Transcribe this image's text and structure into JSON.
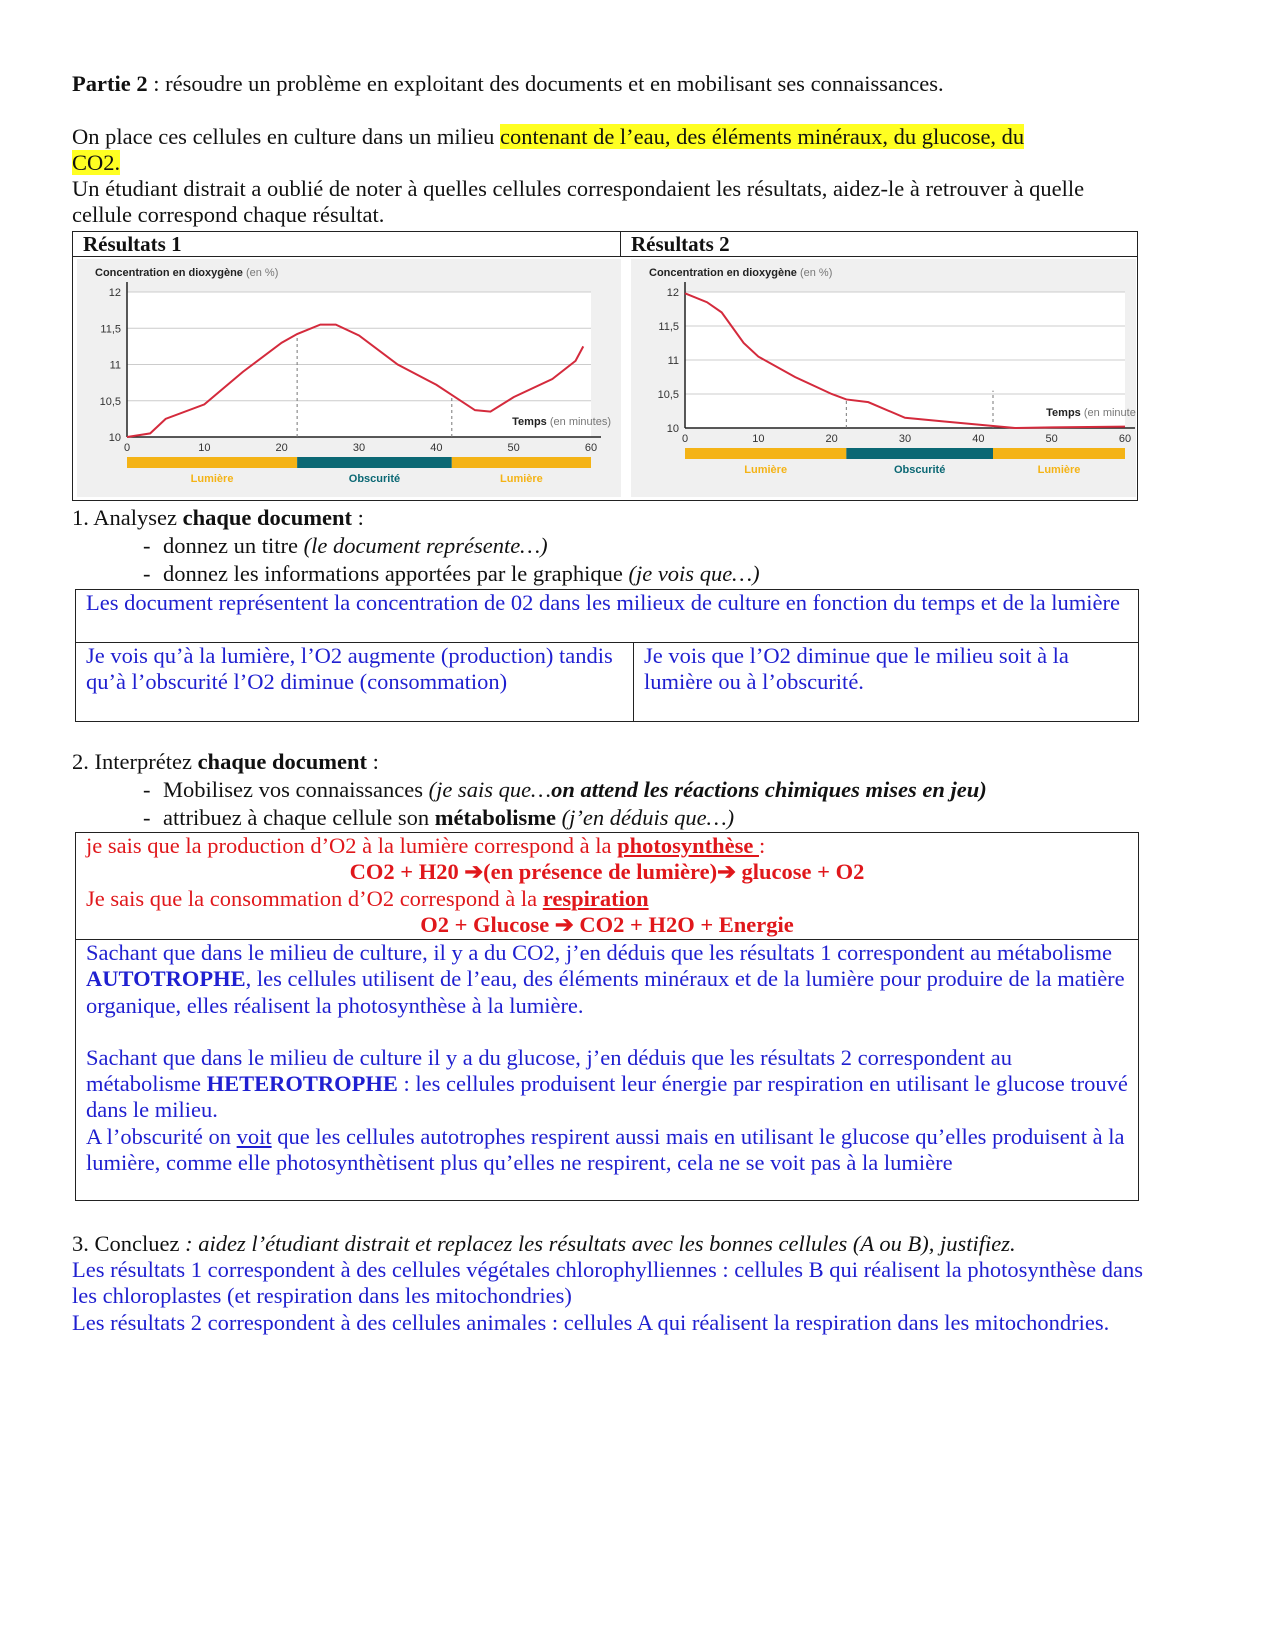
{
  "intro": {
    "part_label": "Partie 2",
    "part_text": " : résoudre un problème en exploitant des documents et en mobilisant ses connaissances.",
    "p1_start": "On place ces cellules en culture dans un milieu ",
    "p1_highlight": "contenant de l’eau, des éléments minéraux, du glucose, du CO2.",
    "p2": "Un étudiant distrait a oublié de noter à quelles cellules correspondaient les résultats, aidez-le à retrouver à quelle cellule correspond chaque résultat."
  },
  "colors": {
    "curve": "#d42a3c",
    "light": "#f4b316",
    "dark": "#0b6874",
    "answer_blue": "#1f1fd0",
    "answer_red": "#e0171b",
    "highlight": "#ffff22"
  },
  "chart_data": [
    {
      "type": "line",
      "panel_title": "Résultats 1",
      "ylabel": "Concentration en dioxygène",
      "ylabel_unit": "(en %)",
      "xlabel": "Temps",
      "xlabel_unit": "(en minutes)",
      "xlim": [
        0,
        60
      ],
      "ylim": [
        10,
        12
      ],
      "xticks": [
        "0",
        "10",
        "20",
        "30",
        "40",
        "50",
        "60"
      ],
      "yticks": [
        "10",
        "10,5",
        "11",
        "11,5",
        "12"
      ],
      "grid": true,
      "x": [
        0,
        3,
        5,
        10,
        15,
        20,
        22,
        25,
        27,
        30,
        35,
        40,
        42,
        45,
        47,
        50,
        55,
        58,
        59
      ],
      "y": [
        10,
        10.05,
        10.25,
        10.45,
        10.9,
        11.3,
        11.42,
        11.55,
        11.55,
        11.4,
        11.0,
        10.72,
        10.58,
        10.37,
        10.35,
        10.55,
        10.8,
        11.05,
        11.25
      ],
      "markers_x": [
        22,
        42
      ],
      "periods": [
        {
          "label": "Lumière",
          "from": 0,
          "to": 22,
          "kind": "light"
        },
        {
          "label": "Obscurité",
          "from": 22,
          "to": 42,
          "kind": "dark"
        },
        {
          "label": "Lumière",
          "from": 42,
          "to": 60,
          "kind": "light"
        }
      ]
    },
    {
      "type": "line",
      "panel_title": "Résultats 2",
      "ylabel": "Concentration en dioxygène",
      "ylabel_unit": "(en %)",
      "xlabel": "Temps",
      "xlabel_unit": "(en minutes)",
      "xlim": [
        0,
        60
      ],
      "ylim": [
        10,
        12
      ],
      "xticks": [
        "0",
        "10",
        "20",
        "30",
        "40",
        "50",
        "60"
      ],
      "yticks": [
        "10",
        "10,5",
        "11",
        "11,5",
        "12"
      ],
      "grid": true,
      "x": [
        0,
        3,
        5,
        8,
        10,
        15,
        20,
        22,
        25,
        30,
        35,
        40,
        45,
        50,
        60
      ],
      "y": [
        11.98,
        11.85,
        11.7,
        11.25,
        11.05,
        10.75,
        10.5,
        10.42,
        10.38,
        10.15,
        10.1,
        10.05,
        10.0,
        10.01,
        10.02
      ],
      "markers_x": [
        22,
        42
      ],
      "periods": [
        {
          "label": "Lumière",
          "from": 0,
          "to": 22,
          "kind": "light"
        },
        {
          "label": "Obscurité",
          "from": 22,
          "to": 42,
          "kind": "dark"
        },
        {
          "label": "Lumière",
          "from": 42,
          "to": 60,
          "kind": "light"
        }
      ]
    }
  ],
  "q1": {
    "num": "1. Analysez ",
    "bold": "chaque document",
    "end": " :",
    "b1": "donnez un titre ",
    "b1i": "(le document représente…)",
    "b2": "donnez les informations apportées par le graphique ",
    "b2i": "(je vois que…)",
    "a_title": "Les document représentent la concentration de 02 dans les milieux de culture en fonction du temps et de la lumière",
    "a_left": "Je vois qu’à la lumière, l’O2 augmente (production) tandis qu’à l’obscurité l’O2 diminue (consommation)",
    "a_right": "Je vois que l’O2 diminue que le milieu soit à la lumière ou à l’obscurité."
  },
  "q2": {
    "num": "2. Interprétez ",
    "bold": "chaque document",
    "end": " :",
    "b1": "Mobilisez vos connaissances ",
    "b1i": "(je sais que…",
    "b1bi": "on attend les réactions chimiques mises en jeu)",
    "b2": "attribuez à chaque cellule son ",
    "b2b": "métabolisme",
    "b2i": " (j’en déduis que…)",
    "r1": "je sais que la production d’O2 à la lumière correspond à la ",
    "r1u": "photosynthèse ",
    "r1e": ":",
    "eq1": "CO2 + H20 ➔(en présence de lumière)➔ glucose + O2",
    "r2": "Je sais que la consommation d’O2 correspond à la ",
    "r2u": "respiration",
    "eq2": "O2 + Glucose ➔ CO2 + H2O + Energie",
    "d1a": "Sachant que dans le milieu de culture, il y a du CO2, j’en déduis que les résultats 1 correspondent au métabolisme ",
    "d1b": "AUTOTROPHE",
    "d1c": ", les cellules utilisent de l’eau, des éléments minéraux et de la lumière pour produire de la matière organique, elles réalisent la photosynthèse à la lumière.",
    "d2a": "Sachant que dans le milieu de culture il y a du glucose, j’en déduis que les résultats 2 correspondent au métabolisme ",
    "d2b": "HETEROTROPHE",
    "d2c": " : les cellules produisent leur énergie par respiration en utilisant le glucose trouvé dans le milieu.",
    "d3a": "A l’obscurité on ",
    "d3u": "voit",
    "d3c": " que les cellules autotrophes respirent aussi mais en utilisant le glucose qu’elles produisent à la lumière, comme elle photosynthètisent plus qu’elles ne respirent, cela ne se voit pas à la lumière"
  },
  "q3": {
    "num": "3. Concluez",
    "ital": " : aidez l’étudiant distrait et replacez les résultats avec les bonnes cellules (A ou B), justifiez.",
    "a1": " Les résultats 1 correspondent à des cellules végétales chlorophylliennes : cellules B qui réalisent la photosynthèse dans les chloroplastes (et respiration dans les mitochondries)",
    "a2": "Les résultats 2 correspondent à  des cellules animales : cellules A qui réalisent la respiration dans les mitochondries."
  }
}
